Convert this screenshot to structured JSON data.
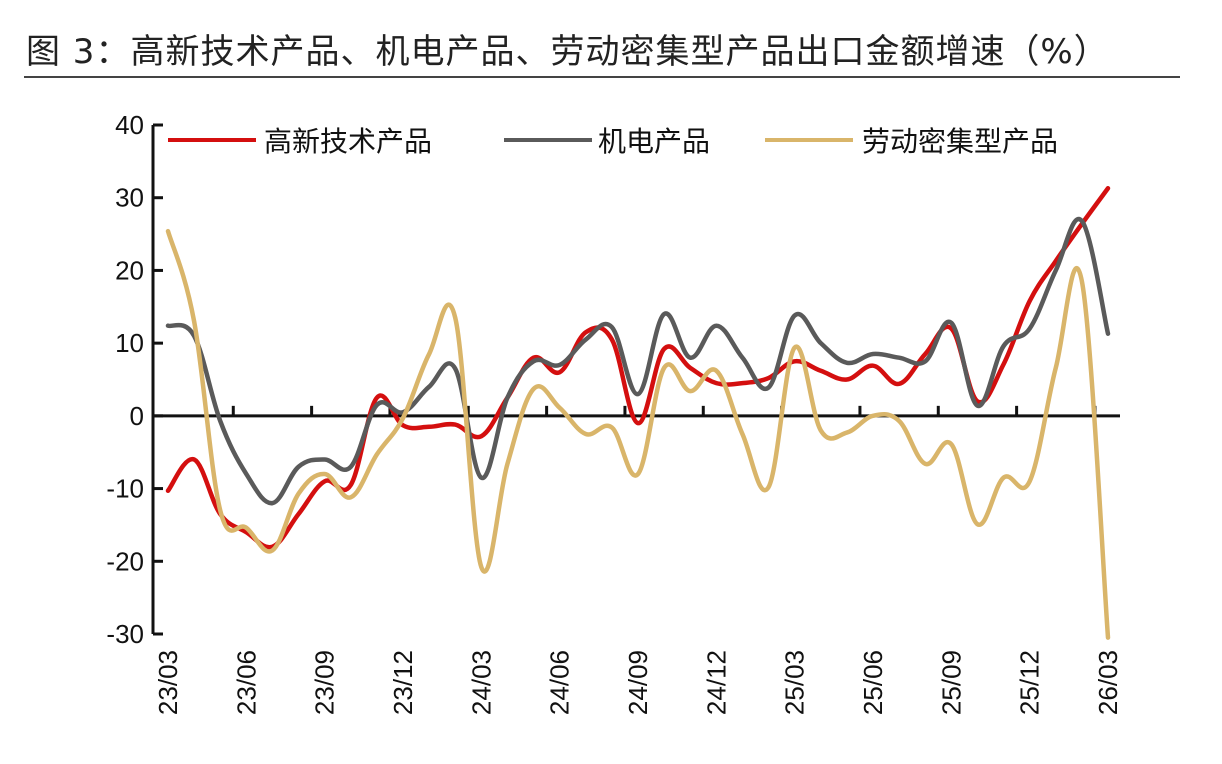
{
  "title": "图 3：高新技术产品、机电产品、劳动密集型产品出口金额增速（%）",
  "chart_data": {
    "type": "line",
    "title": "图 3：高新技术产品、机电产品、劳动密集型产品出口金额增速（%）",
    "xlabel": "",
    "ylabel": "",
    "ylim": [
      -30,
      40
    ],
    "yticks": [
      "-30",
      "-20",
      "-10",
      "0",
      "10",
      "20",
      "30",
      "40"
    ],
    "xtick_labels": [
      "23/03",
      "23/06",
      "23/09",
      "23/12",
      "24/03",
      "24/06",
      "24/09",
      "24/12",
      "25/03",
      "25/06",
      "25/09",
      "25/12",
      "26/03"
    ],
    "x": [
      "23/03",
      "23/04",
      "23/05",
      "23/06",
      "23/07",
      "23/08",
      "23/09",
      "23/10",
      "23/11",
      "23/12",
      "24/01",
      "24/02",
      "24/03",
      "24/04",
      "24/05",
      "24/06",
      "24/07",
      "24/08",
      "24/09",
      "24/10",
      "24/11",
      "24/12",
      "25/01",
      "25/02",
      "25/03",
      "25/04",
      "25/05",
      "25/06",
      "25/07",
      "25/08",
      "25/09",
      "25/10",
      "25/11",
      "25/12",
      "26/01",
      "26/02",
      "26/03"
    ],
    "grid": false,
    "legend_position": "top",
    "series": [
      {
        "name": "高新技术产品",
        "color": "#d40f0f",
        "values": [
          -10.3,
          -6,
          -13.5,
          -16,
          -18,
          -13.5,
          -9,
          -9.5,
          2.5,
          -1.3,
          -1.5,
          -1.2,
          -2.8,
          2.5,
          8,
          6,
          11.5,
          10.5,
          -1,
          9.2,
          6.6,
          4.5,
          4.5,
          5.2,
          7.5,
          6.2,
          5,
          6.9,
          4.4,
          8.5,
          12,
          2,
          7.1,
          15.8,
          21.3,
          26.4,
          31.3
        ]
      },
      {
        "name": "机电产品",
        "color": "#5a5a5a",
        "values": [
          12.4,
          11,
          -0.7,
          -8,
          -12,
          -7,
          -6,
          -7,
          1.5,
          0.5,
          4,
          6.5,
          -8.5,
          2.5,
          7.5,
          7,
          10.5,
          12.2,
          3,
          14,
          8,
          12.4,
          8,
          3.9,
          13.8,
          10,
          7.3,
          8.5,
          8,
          7.5,
          12.8,
          1.4,
          9.6,
          12,
          20,
          26.8,
          11.3
        ]
      },
      {
        "name": "劳动密集型产品",
        "color": "#d9b56a",
        "values": [
          25.4,
          13,
          -13,
          -15.4,
          -18.5,
          -10.7,
          -8,
          -11.2,
          -5.3,
          -0.3,
          8.5,
          13.5,
          -20.8,
          -6.6,
          3.7,
          1.1,
          -2.5,
          -1.6,
          -8,
          6.6,
          3.4,
          6.2,
          -2.5,
          -9.8,
          9.4,
          -2,
          -2.3,
          0,
          -0.7,
          -6.6,
          -3.9,
          -14.9,
          -8.5,
          -9,
          6.6,
          18.5,
          -30.5
        ]
      }
    ]
  }
}
